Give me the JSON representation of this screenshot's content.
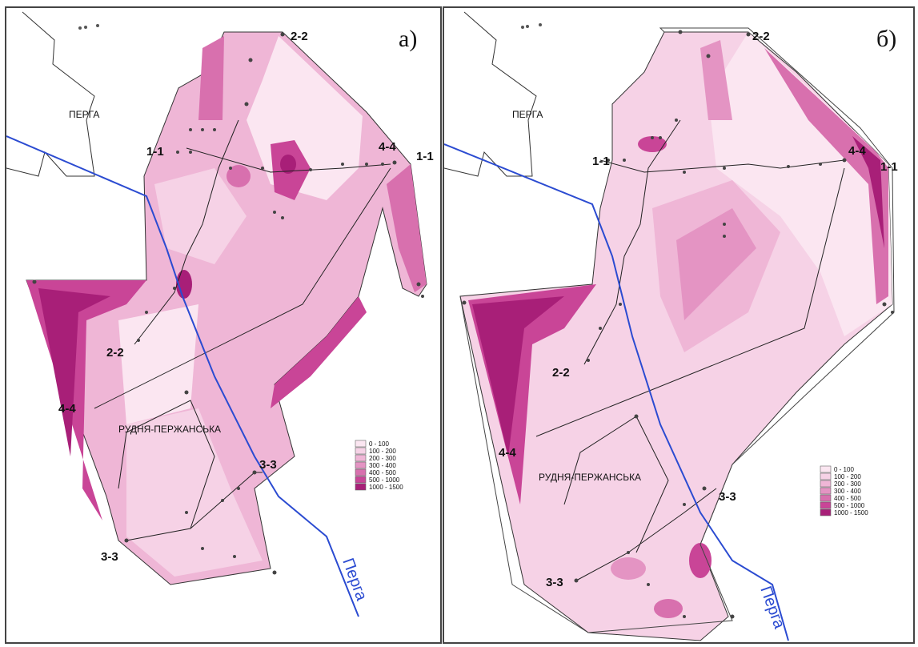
{
  "panels": [
    {
      "id": "a",
      "label": "а)",
      "town_north": "ПЕРГА",
      "town_south": "РУДНЯ-ПЕРЖАНСЬКА",
      "river": "Перга",
      "sections": {
        "s11": "1-1",
        "s11b": "1-1",
        "s22": "2-2",
        "s22b": "2-2",
        "s33": "3-3",
        "s33b": "3-3",
        "s44": "4-4",
        "s44b": "4-4"
      }
    },
    {
      "id": "b",
      "label": "б)",
      "town_north": "ПЕРГА",
      "town_south": "РУДНЯ-ПЕРЖАНСЬКА",
      "river": "Перга",
      "sections": {
        "s11": "1-1",
        "s11b": "1-1",
        "s22": "2-2",
        "s22b": "2-2",
        "s33": "3-3",
        "s33b": "3-3",
        "s44": "4-4",
        "s44b": "4-4"
      }
    }
  ],
  "legend": [
    {
      "label": "0 - 100",
      "color": "#fbe6f1"
    },
    {
      "label": "100 - 200",
      "color": "#f6d2e6"
    },
    {
      "label": "200 - 300",
      "color": "#efb6d6"
    },
    {
      "label": "300 - 400",
      "color": "#e494c3"
    },
    {
      "label": "400 - 500",
      "color": "#d870ae"
    },
    {
      "label": "500 - 1000",
      "color": "#c94597"
    },
    {
      "label": "1000 - 1500",
      "color": "#a81f78"
    }
  ],
  "colors": {
    "river": "#2b4bd1",
    "border": "#333333"
  }
}
